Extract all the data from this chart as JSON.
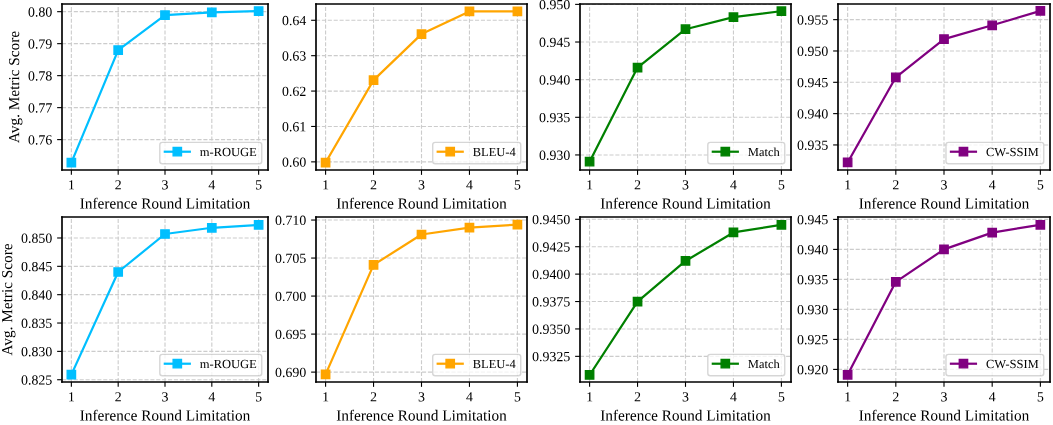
{
  "chart_data": [
    {
      "type": "line",
      "ylabel": "Avg. Metric Score",
      "xlabel": "Inference Round Limitation",
      "x": [
        1,
        2,
        3,
        4,
        5
      ],
      "xlim": [
        0.8,
        5.2
      ],
      "xticks": [
        1,
        2,
        3,
        4,
        5
      ],
      "ylim": [
        0.7505,
        0.8024
      ],
      "yticks": [
        {
          "value": 0.76,
          "label": "0.76"
        },
        {
          "value": 0.77,
          "label": "0.77"
        },
        {
          "value": 0.78,
          "label": "0.78"
        },
        {
          "value": 0.79,
          "label": "0.79"
        },
        {
          "value": 0.8,
          "label": "0.80"
        }
      ],
      "grid": true,
      "legend": "bottom right",
      "marker": "square",
      "line_style": "solid",
      "series": [
        {
          "name": "m-ROUGE",
          "color": "#00bfff",
          "values": [
            0.7528,
            0.788,
            0.7989,
            0.7998,
            0.8002
          ]
        }
      ]
    },
    {
      "type": "line",
      "xlabel": "Inference Round Limitation",
      "x": [
        1,
        2,
        3,
        4,
        5
      ],
      "xlim": [
        0.8,
        5.2
      ],
      "xticks": [
        1,
        2,
        3,
        4,
        5
      ],
      "ylim": [
        0.5977,
        0.6446
      ],
      "yticks": [
        {
          "value": 0.6,
          "label": "0.60"
        },
        {
          "value": 0.61,
          "label": "0.61"
        },
        {
          "value": 0.62,
          "label": "0.62"
        },
        {
          "value": 0.63,
          "label": "0.63"
        },
        {
          "value": 0.64,
          "label": "0.64"
        }
      ],
      "grid": true,
      "legend": "bottom right",
      "marker": "square",
      "line_style": "solid",
      "series": [
        {
          "name": "BLEU-4",
          "color": "#ffa500",
          "values": [
            0.5998,
            0.6231,
            0.6361,
            0.6425,
            0.6425
          ]
        }
      ]
    },
    {
      "type": "line",
      "xlabel": "Inference Round Limitation",
      "x": [
        1,
        2,
        3,
        4,
        5
      ],
      "xlim": [
        0.8,
        5.2
      ],
      "xticks": [
        1,
        2,
        3,
        4,
        5
      ],
      "ylim": [
        0.928,
        0.95005
      ],
      "yticks": [
        {
          "value": 0.93,
          "label": "0.930"
        },
        {
          "value": 0.935,
          "label": "0.935"
        },
        {
          "value": 0.94,
          "label": "0.940"
        },
        {
          "value": 0.945,
          "label": "0.945"
        },
        {
          "value": 0.95,
          "label": "0.950"
        }
      ],
      "grid": true,
      "legend": "bottom right",
      "marker": "square",
      "line_style": "solid",
      "series": [
        {
          "name": "Match",
          "color": "#008000",
          "values": [
            0.9291,
            0.9416,
            0.9467,
            0.9483,
            0.9491
          ]
        }
      ]
    },
    {
      "type": "line",
      "xlabel": "Inference Round Limitation",
      "x": [
        1,
        2,
        3,
        4,
        5
      ],
      "xlim": [
        0.8,
        5.2
      ],
      "xticks": [
        1,
        2,
        3,
        4,
        5
      ],
      "ylim": [
        0.931,
        0.9575
      ],
      "yticks": [
        {
          "value": 0.935,
          "label": "0.935"
        },
        {
          "value": 0.94,
          "label": "0.940"
        },
        {
          "value": 0.945,
          "label": "0.945"
        },
        {
          "value": 0.95,
          "label": "0.950"
        },
        {
          "value": 0.955,
          "label": "0.955"
        }
      ],
      "grid": true,
      "legend": "bottom right",
      "marker": "square",
      "line_style": "solid",
      "series": [
        {
          "name": "CW-SSIM",
          "color": "#800080",
          "values": [
            0.9322,
            0.9458,
            0.9519,
            0.9541,
            0.9564
          ]
        }
      ]
    },
    {
      "type": "line",
      "ylabel": "Avg. Metric Score",
      "xlabel": "Inference Round Limitation",
      "x": [
        1,
        2,
        3,
        4,
        5
      ],
      "xlim": [
        0.8,
        5.2
      ],
      "xticks": [
        1,
        2,
        3,
        4,
        5
      ],
      "ylim": [
        0.8246,
        0.8537
      ],
      "yticks": [
        {
          "value": 0.825,
          "label": "0.825"
        },
        {
          "value": 0.83,
          "label": "0.830"
        },
        {
          "value": 0.835,
          "label": "0.835"
        },
        {
          "value": 0.84,
          "label": "0.840"
        },
        {
          "value": 0.845,
          "label": "0.845"
        },
        {
          "value": 0.85,
          "label": "0.850"
        }
      ],
      "grid": true,
      "legend": "bottom right",
      "marker": "square",
      "line_style": "solid",
      "series": [
        {
          "name": "m-ROUGE",
          "color": "#00bfff",
          "values": [
            0.8259,
            0.844,
            0.8507,
            0.8518,
            0.8523
          ]
        }
      ]
    },
    {
      "type": "line",
      "xlabel": "Inference Round Limitation",
      "x": [
        1,
        2,
        3,
        4,
        5
      ],
      "xlim": [
        0.8,
        5.2
      ],
      "xticks": [
        1,
        2,
        3,
        4,
        5
      ],
      "ylim": [
        0.6887,
        0.7104
      ],
      "yticks": [
        {
          "value": 0.69,
          "label": "0.690"
        },
        {
          "value": 0.695,
          "label": "0.695"
        },
        {
          "value": 0.7,
          "label": "0.700"
        },
        {
          "value": 0.705,
          "label": "0.705"
        },
        {
          "value": 0.71,
          "label": "0.710"
        }
      ],
      "grid": true,
      "legend": "bottom right",
      "marker": "square",
      "line_style": "solid",
      "series": [
        {
          "name": "BLEU-4",
          "color": "#ffa500",
          "values": [
            0.6897,
            0.7041,
            0.7081,
            0.709,
            0.7094
          ]
        }
      ]
    },
    {
      "type": "line",
      "xlabel": "Inference Round Limitation",
      "x": [
        1,
        2,
        3,
        4,
        5
      ],
      "xlim": [
        0.8,
        5.2
      ],
      "xticks": [
        1,
        2,
        3,
        4,
        5
      ],
      "ylim": [
        0.93016,
        0.94521
      ],
      "yticks": [
        {
          "value": 0.9325,
          "label": "0.9325"
        },
        {
          "value": 0.935,
          "label": "0.9350"
        },
        {
          "value": 0.9375,
          "label": "0.9375"
        },
        {
          "value": 0.94,
          "label": "0.9400"
        },
        {
          "value": 0.9425,
          "label": "0.9425"
        },
        {
          "value": 0.945,
          "label": "0.9450"
        }
      ],
      "grid": true,
      "legend": "bottom right",
      "marker": "square",
      "line_style": "solid",
      "series": [
        {
          "name": "Match",
          "color": "#008000",
          "values": [
            0.9308,
            0.9375,
            0.9412,
            0.9438,
            0.9445
          ]
        }
      ]
    },
    {
      "type": "line",
      "xlabel": "Inference Round Limitation",
      "x": [
        1,
        2,
        3,
        4,
        5
      ],
      "xlim": [
        0.8,
        5.2
      ],
      "xticks": [
        1,
        2,
        3,
        4,
        5
      ],
      "ylim": [
        0.9179,
        0.9454
      ],
      "yticks": [
        {
          "value": 0.92,
          "label": "0.920"
        },
        {
          "value": 0.925,
          "label": "0.925"
        },
        {
          "value": 0.93,
          "label": "0.930"
        },
        {
          "value": 0.935,
          "label": "0.935"
        },
        {
          "value": 0.94,
          "label": "0.940"
        },
        {
          "value": 0.945,
          "label": "0.945"
        }
      ],
      "grid": true,
      "legend": "bottom right",
      "marker": "square",
      "line_style": "solid",
      "series": [
        {
          "name": "CW-SSIM",
          "color": "#800080",
          "values": [
            0.9191,
            0.9346,
            0.94,
            0.9428,
            0.9441
          ]
        }
      ]
    }
  ]
}
